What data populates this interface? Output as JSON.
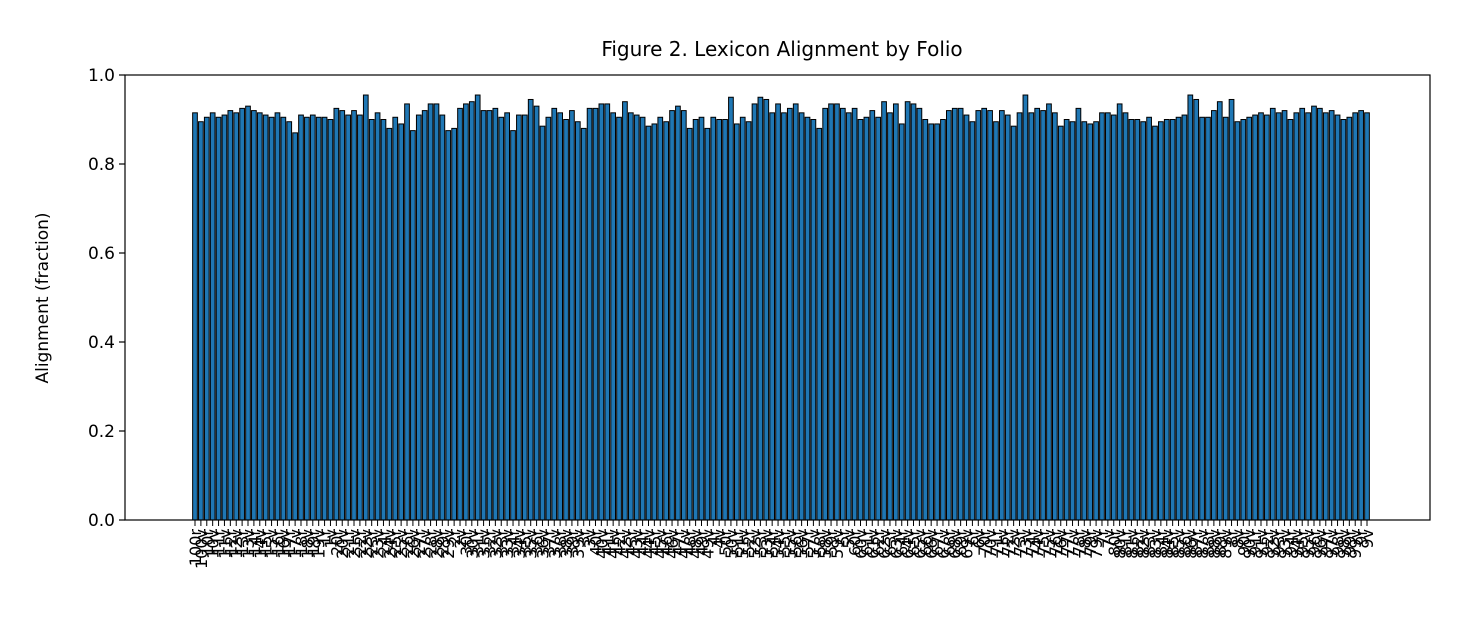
{
  "chart_data": {
    "type": "bar",
    "title": "Figure 2. Lexicon Alignment by Folio",
    "ylabel": "Alignment (fraction)",
    "color": "#1f77b4",
    "edgecolor": "#000000",
    "ylim": [
      0,
      1
    ],
    "yticks": [
      {
        "value": 0,
        "label": "0.0"
      },
      0.2,
      0.4,
      0.6,
      0.8,
      {
        "value": 1,
        "label": "1.0"
      }
    ],
    "categories": [
      "100r",
      "100v",
      "10r",
      "10v",
      "11r",
      "11v",
      "12r",
      "12v",
      "13r",
      "13v",
      "14r",
      "14v",
      "15r",
      "15v",
      "16r",
      "16v",
      "17r",
      "17v",
      "18r",
      "18v",
      "19r",
      "19v",
      "1r",
      "1v",
      "20r",
      "20v",
      "21r",
      "21v",
      "22r",
      "22v",
      "23r",
      "23v",
      "24r",
      "24v",
      "25r",
      "25v",
      "26r",
      "26v",
      "27r",
      "27v",
      "28r",
      "28v",
      "29r",
      "29v",
      "2r",
      "2v",
      "30r",
      "30v",
      "31r",
      "31v",
      "32r",
      "32v",
      "33r",
      "33v",
      "34r",
      "34v",
      "35r",
      "35v",
      "36r",
      "36v",
      "37r",
      "37v",
      "38r",
      "38v",
      "39r",
      "39v",
      "3r",
      "3v",
      "40r",
      "40v",
      "41r",
      "41v",
      "42r",
      "42v",
      "43r",
      "43v",
      "44r",
      "44v",
      "45r",
      "45v",
      "46r",
      "46v",
      "47r",
      "47v",
      "48r",
      "48v",
      "49r",
      "49v",
      "4r",
      "4v",
      "50r",
      "50v",
      "51r",
      "51v",
      "52r",
      "52v",
      "53r",
      "53v",
      "54r",
      "54v",
      "55r",
      "55v",
      "56r",
      "56v",
      "57r",
      "57v",
      "58r",
      "58v",
      "59r",
      "59v",
      "5r",
      "5v",
      "60r",
      "60v",
      "61r",
      "61v",
      "62r",
      "62v",
      "63r",
      "63v",
      "64r",
      "64v",
      "65r",
      "65v",
      "66r",
      "66v",
      "67r",
      "67v",
      "68r",
      "68v",
      "69r",
      "69v",
      "6r",
      "6v",
      "70r",
      "70v",
      "71r",
      "71v",
      "72r",
      "72v",
      "73r",
      "73v",
      "74r",
      "74v",
      "75r",
      "75v",
      "76r",
      "76v",
      "77r",
      "77v",
      "78r",
      "78v",
      "79r",
      "79v",
      "7r",
      "7v",
      "80r",
      "80v",
      "81r",
      "81v",
      "82r",
      "82v",
      "83r",
      "83v",
      "84r",
      "84v",
      "85r",
      "85v",
      "86r",
      "86v",
      "87r",
      "87v",
      "88r",
      "88v",
      "89r",
      "89v",
      "8r",
      "8v",
      "90r",
      "90v",
      "91r",
      "91v",
      "92r",
      "92v",
      "93r",
      "93v",
      "94r",
      "94v",
      "95r",
      "95v",
      "96r",
      "96v",
      "97r",
      "97v",
      "98r",
      "98v",
      "99r",
      "99v",
      "9r",
      "9v"
    ],
    "values": [
      0.915,
      0.895,
      0.905,
      0.915,
      0.905,
      0.91,
      0.92,
      0.915,
      0.925,
      0.93,
      0.92,
      0.915,
      0.91,
      0.905,
      0.915,
      0.905,
      0.895,
      0.87,
      0.91,
      0.905,
      0.91,
      0.905,
      0.905,
      0.9,
      0.925,
      0.92,
      0.91,
      0.92,
      0.91,
      0.955,
      0.9,
      0.915,
      0.9,
      0.88,
      0.905,
      0.89,
      0.935,
      0.875,
      0.91,
      0.92,
      0.935,
      0.935,
      0.91,
      0.875,
      0.88,
      0.925,
      0.935,
      0.94,
      0.955,
      0.92,
      0.92,
      0.925,
      0.905,
      0.915,
      0.875,
      0.91,
      0.91,
      0.945,
      0.93,
      0.885,
      0.905,
      0.925,
      0.915,
      0.9,
      0.92,
      0.895,
      0.88,
      0.925,
      0.925,
      0.935,
      0.935,
      0.915,
      0.905,
      0.94,
      0.915,
      0.91,
      0.905,
      0.885,
      0.89,
      0.905,
      0.895,
      0.92,
      0.93,
      0.92,
      0.88,
      0.9,
      0.905,
      0.88,
      0.905,
      0.9,
      0.9,
      0.95,
      0.89,
      0.905,
      0.895,
      0.935,
      0.95,
      0.945,
      0.915,
      0.935,
      0.915,
      0.925,
      0.935,
      0.915,
      0.905,
      0.9,
      0.88,
      0.925,
      0.935,
      0.935,
      0.925,
      0.915,
      0.925,
      0.9,
      0.905,
      0.92,
      0.905,
      0.94,
      0.915,
      0.935,
      0.89,
      0.94,
      0.935,
      0.925,
      0.9,
      0.89,
      0.89,
      0.9,
      0.92,
      0.925,
      0.925,
      0.91,
      0.895,
      0.92,
      0.925,
      0.92,
      0.895,
      0.92,
      0.91,
      0.885,
      0.915,
      0.955,
      0.915,
      0.925,
      0.92,
      0.935,
      0.915,
      0.885,
      0.9,
      0.895,
      0.925,
      0.895,
      0.89,
      0.895,
      0.915,
      0.915,
      0.91,
      0.935,
      0.915,
      0.9,
      0.9,
      0.895,
      0.905,
      0.885,
      0.895,
      0.9,
      0.9,
      0.905,
      0.91,
      0.955,
      0.945,
      0.905,
      0.905,
      0.92,
      0.94,
      0.905,
      0.945,
      0.895,
      0.9,
      0.905,
      0.91,
      0.915,
      0.91,
      0.925,
      0.915,
      0.92,
      0.9,
      0.915,
      0.925,
      0.915,
      0.93,
      0.925,
      0.915,
      0.92,
      0.91,
      0.9,
      0.905,
      0.915,
      0.92,
      0.915
    ]
  }
}
